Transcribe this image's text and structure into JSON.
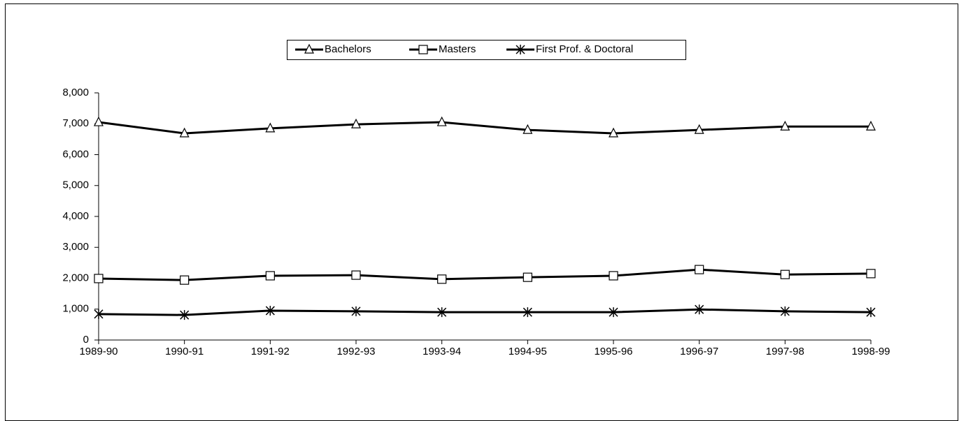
{
  "chart_data": {
    "type": "line",
    "categories": [
      "1989-90",
      "1990-91",
      "1991-92",
      "1992-93",
      "1993-94",
      "1994-95",
      "1995-96",
      "1996-97",
      "1997-98",
      "1998-99"
    ],
    "series": [
      {
        "name": "Bachelors",
        "color": "#000000",
        "marker": "triangle",
        "values": [
          7050,
          6690,
          6850,
          6980,
          7050,
          6800,
          6690,
          6800,
          6910,
          6910
        ]
      },
      {
        "name": "Masters",
        "color": "#000000",
        "marker": "square",
        "values": [
          1990,
          1940,
          2080,
          2100,
          1970,
          2030,
          2080,
          2280,
          2120,
          2150
        ]
      },
      {
        "name": "First Prof. & Doctoral",
        "color": "#000000",
        "marker": "star",
        "values": [
          840,
          810,
          950,
          930,
          900,
          900,
          900,
          990,
          930,
          900
        ]
      }
    ],
    "ylim": [
      0,
      8000
    ],
    "yticks": [
      0,
      {
        "value": 1000,
        "label": "1,000"
      },
      {
        "value": 2000,
        "label": "2,000"
      },
      {
        "value": 3000,
        "label": "3,000"
      },
      {
        "value": 4000,
        "label": "4,000"
      },
      {
        "value": 5000,
        "label": "5,000"
      },
      {
        "value": 6000,
        "label": "6,000"
      },
      {
        "value": 7000,
        "label": "7,000"
      },
      {
        "value": 8000,
        "label": "8,000"
      }
    ],
    "legend": "top"
  }
}
